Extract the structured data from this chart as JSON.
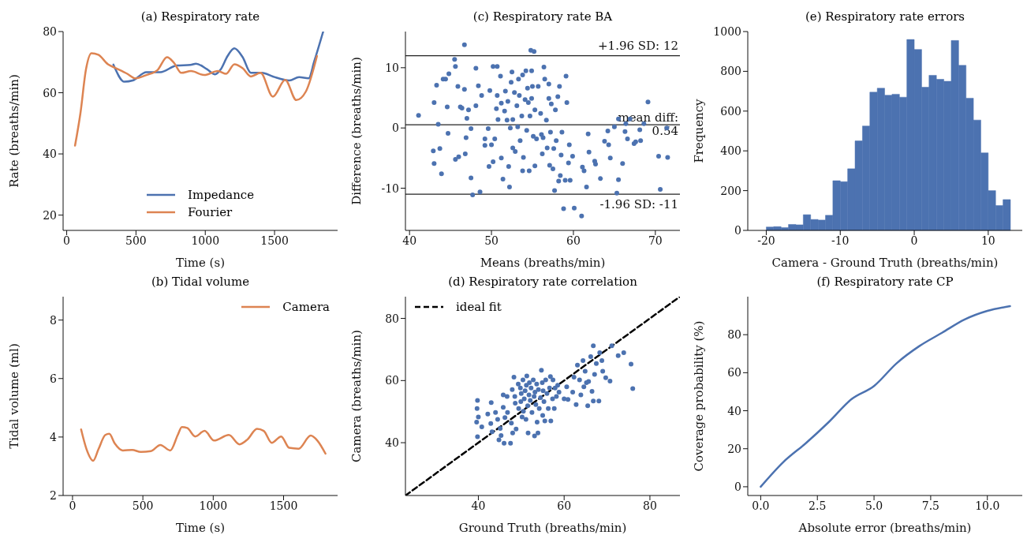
{
  "chart_data": [
    {
      "type": "line",
      "title": "(a) Respiratory rate",
      "xlabel": "Time (s)",
      "ylabel": "Rate (breaths/min)",
      "xlim": [
        -26,
        1955
      ],
      "xticks": [
        0,
        500,
        1000,
        1500
      ],
      "ylim": [
        15,
        80
      ],
      "yticks": [
        20,
        40,
        60,
        80
      ],
      "legend": "bottom",
      "series": [
        {
          "name": "Impedance",
          "color": "#4c72b0",
          "x": [
            337,
            417,
            476,
            575,
            675,
            794,
            893,
            933,
            1012,
            1071,
            1111,
            1161,
            1210,
            1270,
            1329,
            1409,
            1488,
            1607,
            1677,
            1746,
            1786,
            1851
          ],
          "values": [
            69.2,
            63.6,
            64,
            66.7,
            66.7,
            68.9,
            69.1,
            69.5,
            67.7,
            66,
            67.6,
            72,
            74.5,
            71.6,
            66.5,
            66.5,
            65.3,
            64,
            65.1,
            64.7,
            70.2,
            80
          ]
        },
        {
          "name": "Fourier",
          "color": "#dd8452",
          "x": [
            60,
            99,
            139,
            179,
            228,
            298,
            357,
            437,
            496,
            575,
            655,
            724,
            774,
            827,
            897,
            992,
            1091,
            1151,
            1210,
            1270,
            1329,
            1399,
            1488,
            1577,
            1657,
            1726,
            1806
          ],
          "values": [
            42.7,
            53.3,
            67.6,
            72.9,
            72.4,
            69.3,
            68,
            66.2,
            64.7,
            65.8,
            67.4,
            71.6,
            69.8,
            66.5,
            67.1,
            65.8,
            67.1,
            66.2,
            69.3,
            68,
            65.3,
            66.5,
            58.7,
            64.2,
            57.6,
            60.4,
            72
          ]
        }
      ]
    },
    {
      "type": "scatter",
      "title": "(c) Respiratory rate BA",
      "xlabel": "Means (breaths/min)",
      "ylabel": "Difference (breaths/min)",
      "xlim": [
        39.5,
        73
      ],
      "xticks": [
        40,
        50,
        60,
        70
      ],
      "ylim": [
        -17,
        16
      ],
      "yticks": [
        -10,
        0,
        10
      ],
      "marker": "circle",
      "ref_lines": [
        {
          "axis": "y",
          "value": 12,
          "label": "+1.96 SD: 12",
          "color": "#222222"
        },
        {
          "axis": "y",
          "value": 0.54,
          "label": "mean diff:\n0.54",
          "color": "#222222"
        },
        {
          "axis": "y",
          "value": -11,
          "label": "-1.96 SD: -11",
          "color": "#222222"
        }
      ],
      "series": [
        {
          "color": "#4c72b0",
          "x": [
            41.1,
            42.9,
            43.0,
            43.0,
            43.3,
            43.5,
            43.7,
            43.9,
            44.1,
            44.4,
            44.6,
            44.7,
            44.8,
            45.5,
            45.6,
            45.6,
            45.9,
            46.0,
            46.2,
            46.4,
            46.7,
            46.7,
            46.8,
            46.9,
            47.0,
            47.2,
            47.5,
            47.5,
            47.7,
            48.1,
            48.1,
            48.4,
            48.6,
            48.8,
            49.2,
            49.2,
            49.6,
            49.7,
            49.8,
            50.0,
            50.2,
            50.2,
            50.4,
            50.6,
            50.7,
            50.7,
            50.8,
            51.1,
            51.2,
            51.2,
            51.4,
            51.6,
            51.7,
            51.9,
            52.0,
            52.1,
            52.2,
            52.3,
            52.4,
            52.5,
            52.6,
            52.6,
            52.8,
            52.9,
            53.1,
            53.2,
            53.3,
            53.4,
            53.5,
            53.7,
            53.8,
            53.8,
            53.9,
            54.1,
            54.2,
            54.3,
            54.4,
            54.5,
            54.6,
            54.7,
            54.8,
            54.9,
            54.9,
            55.0,
            55.1,
            55.2,
            55.3,
            55.3,
            55.5,
            55.7,
            56.0,
            56.1,
            56.2,
            56.3,
            56.4,
            56.5,
            56.7,
            56.8,
            57.0,
            57.0,
            57.1,
            57.2,
            57.3,
            57.5,
            57.6,
            57.7,
            57.8,
            57.9,
            58.1,
            58.2,
            58.3,
            58.4,
            58.5,
            58.6,
            58.8,
            59.0,
            59.1,
            59.2,
            59.4,
            59.5,
            59.6,
            59.9,
            60.1,
            61.0,
            61.1,
            61.3,
            61.6,
            61.8,
            61.9,
            62.6,
            62.7,
            63.3,
            63.8,
            64.2,
            64.3,
            64.5,
            65.0,
            65.3,
            65.5,
            65.5,
            66.0,
            66.3,
            66.4,
            66.6,
            66.9,
            67.4,
            67.6,
            68.1,
            68.2,
            68.6,
            69.1,
            70.4,
            70.6,
            71.4,
            71.5
          ],
          "values": [
            2.1,
            -3.8,
            -5.9,
            4.2,
            7.1,
            0.6,
            -3.4,
            -7.6,
            8.1,
            8.1,
            3.5,
            -0.9,
            9.0,
            11.4,
            10.2,
            -5.2,
            6.9,
            -4.8,
            3.5,
            3.3,
            13.8,
            6.4,
            -4.3,
            -1.6,
            1.6,
            3.0,
            -0.1,
            -8.3,
            -11.1,
            3.7,
            9.9,
            7.0,
            -10.6,
            5.4,
            -1.8,
            -2.9,
            -0.1,
            -6.4,
            6.2,
            -2.8,
            10.2,
            -5.6,
            -1.8,
            3.2,
            10.2,
            5.4,
            1.4,
            8.6,
            -5.0,
            4.1,
            -8.5,
            2.8,
            6.1,
            1.3,
            4.4,
            -6.4,
            -9.8,
            0.0,
            7.6,
            9.3,
            -3.3,
            1.4,
            5.9,
            -3.9,
            3.7,
            0.2,
            8.1,
            5.4,
            -2.1,
            2.0,
            8.8,
            -7.1,
            -4.9,
            4.7,
            9.5,
            -0.4,
            6.6,
            4.2,
            -7.1,
            2.0,
            12.9,
            9.5,
            4.9,
            6.9,
            -1.4,
            12.7,
            -6.3,
            3.0,
            -1.8,
            6.9,
            2.4,
            -1.1,
            -4.3,
            -1.6,
            10.1,
            8.1,
            1.3,
            -3.3,
            4.9,
            7.3,
            -6.2,
            -0.7,
            4.0,
            -6.8,
            -3.4,
            -10.4,
            3.0,
            -2.1,
            5.2,
            -8.8,
            6.9,
            -7.9,
            -4.5,
            -0.7,
            -13.4,
            -8.7,
            8.6,
            4.2,
            -5.8,
            -2.8,
            -8.7,
            -4.7,
            -13.3,
            -14.6,
            -6.5,
            -7.1,
            -9.8,
            -1.0,
            -4.0,
            -5.5,
            -6.0,
            -8.4,
            -2.2,
            -0.5,
            -2.8,
            -5.0,
            0.2,
            -10.8,
            -8.6,
            1.5,
            -5.9,
            -0.6,
            0.7,
            -1.8,
            1.5,
            -2.6,
            -2.3,
            -0.3,
            -2.1,
            0.7,
            4.3,
            -4.7,
            -10.2,
            0.0,
            -4.9
          ]
        }
      ]
    },
    {
      "type": "histogram",
      "title": "(e) Respiratory rate errors",
      "xlabel": "Camera - Ground Truth (breaths/min)",
      "ylabel": "Frequency",
      "xlim": [
        -22.5,
        14.6
      ],
      "xticks": [
        -20,
        -10,
        0,
        10
      ],
      "ylim": [
        0,
        1000
      ],
      "yticks": [
        0,
        200,
        400,
        600,
        800,
        1000
      ],
      "color": "#4c72b0",
      "bins": [
        -20,
        -19,
        -18,
        -17,
        -16,
        -15,
        -14,
        -13,
        -12,
        -11,
        -10,
        -9,
        -8,
        -7,
        -6,
        -5,
        -4,
        -3,
        -2,
        -1,
        0,
        1,
        2,
        3,
        4,
        5,
        6,
        7,
        8,
        9,
        10,
        11,
        12,
        13
      ],
      "values": [
        17,
        19,
        14,
        30,
        28,
        79,
        55,
        52,
        76,
        250,
        245,
        310,
        450,
        525,
        695,
        715,
        680,
        685,
        670,
        960,
        910,
        720,
        780,
        760,
        750,
        955,
        830,
        665,
        555,
        390,
        200,
        125,
        155
      ]
    },
    {
      "type": "line",
      "title": "(b) Tidal volume",
      "xlabel": "Time (s)",
      "ylabel": "Tidal volume (ml)",
      "xlim": [
        -67,
        1884
      ],
      "xticks": [
        0,
        500,
        1000,
        1500
      ],
      "ylim": [
        2,
        8.8
      ],
      "yticks": [
        2,
        4,
        6,
        8
      ],
      "legend": "top right",
      "series": [
        {
          "name": "Camera",
          "color": "#dd8452",
          "x": [
            61,
            99,
            147,
            185,
            233,
            261,
            300,
            357,
            424,
            485,
            557,
            624,
            695,
            748,
            777,
            815,
            872,
            939,
            1006,
            1111,
            1187,
            1244,
            1311,
            1359,
            1416,
            1483,
            1540,
            1607,
            1693,
            1740,
            1798
          ],
          "values": [
            4.26,
            3.59,
            3.19,
            3.59,
            4.07,
            4.11,
            3.78,
            3.54,
            3.56,
            3.49,
            3.52,
            3.73,
            3.54,
            4.07,
            4.34,
            4.31,
            4.02,
            4.21,
            3.88,
            4.07,
            3.75,
            3.92,
            4.28,
            4.21,
            3.8,
            4.02,
            3.63,
            3.6,
            4.05,
            3.88,
            3.43
          ]
        }
      ]
    },
    {
      "type": "scatter",
      "title": "(d) Respiratory rate correlation",
      "xlabel": "Ground Truth (breaths/min)",
      "ylabel": "Camera (breaths/min)",
      "xlim": [
        23,
        87
      ],
      "xticks": [
        40,
        60,
        80
      ],
      "ylim": [
        23,
        87
      ],
      "yticks": [
        40,
        60,
        80
      ],
      "marker": "circle",
      "legend": "top left",
      "series": [
        {
          "color": "#4c72b0",
          "x": [
            39.8,
            39.7,
            40,
            39.6,
            39.8,
            40.8,
            42.2,
            43,
            42.9,
            43.2,
            44,
            44.5,
            44.8,
            45.1,
            45.3,
            45.8,
            45.8,
            46,
            46.2,
            46.7,
            46.8,
            47.5,
            47.7,
            47.9,
            48,
            48.3,
            48.5,
            48.6,
            48.8,
            49.3,
            49.4,
            49.8,
            49.9,
            50,
            50.2,
            50.4,
            50.5,
            50.7,
            50.9,
            51.1,
            51.2,
            51.3,
            51.5,
            51.6,
            51.8,
            51.9,
            52.1,
            52.3,
            52.5,
            52.8,
            53,
            53.1,
            53.2,
            53.4,
            53.6,
            53.7,
            53.9,
            54,
            54.2,
            54.5,
            54.7,
            54.9,
            55,
            55.1,
            55.3,
            55.5,
            55.7,
            56,
            56.3,
            56.6,
            56.8,
            56.9,
            57.3,
            57.4,
            57.7,
            57.9,
            58.2,
            58.5,
            58.8,
            60,
            60.6,
            60.9,
            62,
            62.3,
            62.8,
            63.1,
            63.6,
            63.9,
            64.4,
            64.6,
            64.9,
            65.2,
            65.5,
            65.7,
            66.2,
            66.5,
            66.8,
            66.8,
            67.1,
            67.5,
            68.1,
            68.3,
            68.8,
            69,
            69.7,
            70.7,
            71.1,
            72.6,
            73.9,
            75.6,
            76
          ],
          "values": [
            53.6,
            51,
            48.3,
            46.6,
            41.9,
            45.1,
            49.2,
            52.9,
            46.2,
            43.5,
            49.7,
            47.5,
            40.9,
            44.6,
            42.3,
            55.4,
            51.4,
            39.8,
            48.1,
            54.9,
            49.7,
            39.8,
            46.3,
            57.1,
            43.1,
            61.1,
            54.9,
            52.7,
            44.4,
            58.9,
            51,
            57.6,
            53.2,
            55.8,
            48.3,
            60.2,
            50.1,
            54.1,
            56.7,
            47.5,
            58.5,
            61.5,
            51.9,
            43.1,
            55.4,
            59.3,
            53.6,
            57.6,
            49.7,
            60.2,
            54.9,
            42.2,
            56.3,
            52.3,
            58.9,
            46.6,
            43.1,
            57.1,
            51,
            54.5,
            63.3,
            59.3,
            48.8,
            56.7,
            53.2,
            47,
            60.2,
            55.8,
            51,
            57.6,
            61.3,
            47,
            54.1,
            60.2,
            51,
            57.6,
            54.9,
            58.5,
            56.3,
            54.1,
            58,
            53.9,
            56.3,
            61.1,
            52.3,
            65,
            60.2,
            55.4,
            66.4,
            58,
            63,
            59.3,
            51.9,
            59.7,
            67.7,
            56.5,
            71.2,
            53.4,
            62,
            65.5,
            53.4,
            69,
            66.4,
            63,
            60.9,
            59.8,
            71.2,
            68,
            69,
            65.3,
            57.4
          ]
        },
        {
          "type": "line",
          "name": "ideal fit",
          "color": "#000000",
          "line_style": "dashed",
          "marker": "none",
          "x": [
            23,
            87
          ],
          "values": [
            23,
            87
          ]
        }
      ]
    },
    {
      "type": "line",
      "title": "(f) Respiratory rate CP",
      "xlabel": "Absolute error (breaths/min)",
      "ylabel": "Coverage probability (%)",
      "xlim": [
        -0.57,
        11.54
      ],
      "xticks": [
        {
          "value": 0,
          "label": "0.0"
        },
        2.5,
        {
          "value": 5,
          "label": "5.0"
        },
        7.5,
        {
          "value": 10,
          "label": "10.0"
        }
      ],
      "ylim": [
        -4.6,
        100
      ],
      "yticks": [
        0,
        20,
        40,
        60,
        80
      ],
      "series": [
        {
          "color": "#4c72b0",
          "x": [
            0,
            1,
            2,
            3,
            4,
            5,
            6,
            7,
            8,
            9,
            10,
            11
          ],
          "values": [
            0,
            13,
            23,
            34,
            46,
            53,
            65,
            74,
            81,
            88,
            92.5,
            95
          ]
        }
      ]
    }
  ]
}
